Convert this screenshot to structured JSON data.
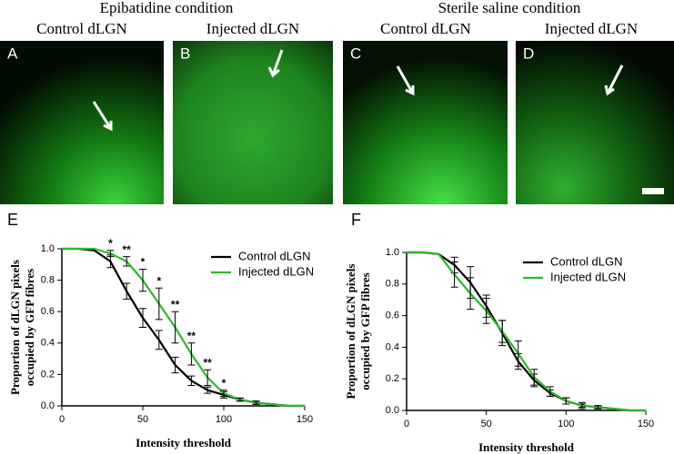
{
  "headings": [
    "Epibatidine condition",
    "Sterile saline condition"
  ],
  "images": [
    {
      "letter": "A",
      "label": "Control dLGN"
    },
    {
      "letter": "B",
      "label": "Injected dLGN"
    },
    {
      "letter": "C",
      "label": "Control dLGN"
    },
    {
      "letter": "D",
      "label": "Injected dLGN"
    }
  ],
  "chart_data": [
    {
      "type": "line",
      "panel": "E",
      "ylabel": [
        "Proportion of dLGN pixels",
        "occupied by GFP fibres"
      ],
      "xlabel": "Intensity threshold",
      "x": [
        0,
        10,
        20,
        30,
        40,
        50,
        60,
        70,
        80,
        90,
        100,
        110,
        120,
        130,
        140,
        150
      ],
      "xlim": [
        0,
        150
      ],
      "xticks": [
        0,
        50,
        100,
        150
      ],
      "ylim": [
        0,
        1
      ],
      "yticks": [
        {
          "value": 0,
          "label": "0.0"
        },
        0.2,
        0.4,
        0.6,
        0.8,
        {
          "value": 1,
          "label": "1.0"
        }
      ],
      "series": [
        {
          "name": "Control dLGN",
          "color": "#000000",
          "values": [
            1,
            1,
            0.99,
            0.92,
            0.73,
            0.56,
            0.42,
            0.26,
            0.16,
            0.1,
            0.07,
            0.04,
            0.02,
            0.01,
            0,
            0
          ],
          "errors": [
            null,
            null,
            null,
            0.04,
            0.05,
            0.06,
            0.06,
            0.05,
            0.03,
            0.02,
            0.02,
            0.01,
            0.01,
            null,
            null,
            null
          ]
        },
        {
          "name": "Injected dLGN",
          "color": "#2db82d",
          "values": [
            1,
            1,
            1,
            0.97,
            0.92,
            0.8,
            0.65,
            0.5,
            0.33,
            0.18,
            0.08,
            0.04,
            0.02,
            0.01,
            0,
            0
          ],
          "errors": [
            null,
            null,
            null,
            0.02,
            0.03,
            0.07,
            0.1,
            0.1,
            0.07,
            0.05,
            0.02,
            0.01,
            0.01,
            null,
            null,
            null
          ]
        }
      ],
      "annotations": [
        {
          "x": 30,
          "text": "*"
        },
        {
          "x": 40,
          "text": "**"
        },
        {
          "x": 50,
          "text": "*"
        },
        {
          "x": 60,
          "text": "*"
        },
        {
          "x": 70,
          "text": "**"
        },
        {
          "x": 80,
          "text": "**"
        },
        {
          "x": 90,
          "text": "**"
        },
        {
          "x": 100,
          "text": "*"
        }
      ]
    },
    {
      "type": "line",
      "panel": "F",
      "ylabel": [
        "Proportion of dLGN pixels",
        "occupied by GFP fibres"
      ],
      "xlabel": "Intensity threshold",
      "x": [
        0,
        10,
        20,
        30,
        40,
        50,
        60,
        70,
        80,
        90,
        100,
        110,
        120,
        130,
        140,
        150
      ],
      "xlim": [
        0,
        150
      ],
      "xticks": [
        0,
        50,
        100,
        150
      ],
      "ylim": [
        0,
        1
      ],
      "yticks": [
        {
          "value": 0,
          "label": "0.0"
        },
        0.2,
        0.4,
        0.6,
        0.8,
        {
          "value": 1,
          "label": "1.0"
        }
      ],
      "series": [
        {
          "name": "Control dLGN",
          "color": "#000000",
          "values": [
            1,
            1,
            0.99,
            0.92,
            0.81,
            0.66,
            0.49,
            0.31,
            0.19,
            0.11,
            0.06,
            0.03,
            0.02,
            0.01,
            0,
            0
          ],
          "errors": [
            null,
            null,
            null,
            0.05,
            0.1,
            0.07,
            0.08,
            0.05,
            0.04,
            0.02,
            0.02,
            0.01,
            0.01,
            null,
            null,
            null
          ]
        },
        {
          "name": "Injected dLGN",
          "color": "#2db82d",
          "values": [
            1,
            1,
            0.99,
            0.86,
            0.74,
            0.63,
            0.5,
            0.36,
            0.21,
            0.12,
            0.06,
            0.03,
            0.02,
            0.01,
            0,
            0
          ],
          "errors": [
            null,
            null,
            null,
            0.08,
            0.1,
            0.08,
            0.07,
            0.08,
            0.05,
            0.03,
            0.02,
            0.02,
            0.01,
            null,
            null,
            null
          ]
        }
      ]
    }
  ]
}
